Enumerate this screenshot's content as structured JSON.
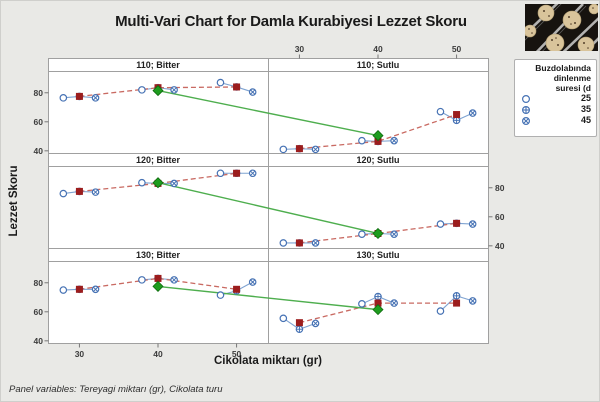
{
  "title": "Multi-Vari Chart for Damla Kurabiyesi Lezzet Skoru",
  "x_axis_label": "Cikolata miktarı (gr)",
  "y_axis_label": "Lezzet Skoru",
  "footnote": "Panel variables: Tereyagi miktarı (gr), Cikolata turu",
  "legend": {
    "title_lines": [
      "Buzdolabında",
      "dinlenme",
      "suresi (d"
    ],
    "items": [
      {
        "label": "25",
        "marker": "open-circle-icon"
      },
      {
        "label": "35",
        "marker": "circle-plus-icon"
      },
      {
        "label": "45",
        "marker": "circle-cross-icon"
      }
    ]
  },
  "colors": {
    "level_marker": "#4672B4",
    "level_line": "#7FA3D1",
    "mean_marker": "#9C1D1D",
    "mean_line": "#C96A62",
    "panel_mean_marker": "#1E9C1E",
    "panel_mean_edge": "#0E6B0E",
    "panel_mean_line": "#4EAE4E",
    "panel_border": "#A0A0A0",
    "background": "#E9E9E6"
  },
  "chart_data": {
    "type": "line",
    "subtype": "multi-vari",
    "x_ticks": [
      30,
      40,
      50
    ],
    "y_ticks": [
      80,
      60,
      40
    ],
    "xlim": [
      26,
      54
    ],
    "ylim": [
      38.5,
      95
    ],
    "jitter_units": 2.05,
    "legend_levels": [
      "25",
      "35",
      "45"
    ],
    "rows": [
      {
        "row_label": "110",
        "panels": [
          {
            "label": "110; Bitter",
            "panel_mean": 81.5,
            "groups": [
              {
                "x": 30,
                "points": [
                  76.5,
                  77.5,
                  76.5
                ],
                "mean": 77.5
              },
              {
                "x": 40,
                "points": [
                  82,
                  83.5,
                  82
                ],
                "mean": 83.5
              },
              {
                "x": 50,
                "points": [
                  87,
                  84,
                  80.5
                ],
                "mean": 84
              }
            ]
          },
          {
            "label": "110; Sutlu",
            "panel_mean": 50.5,
            "groups": [
              {
                "x": 30,
                "points": [
                  41,
                  41.5,
                  41
                ],
                "mean": 41.5
              },
              {
                "x": 40,
                "points": [
                  47,
                  46.5,
                  47
                ],
                "mean": 46.5
              },
              {
                "x": 50,
                "points": [
                  67,
                  61,
                  66
                ],
                "mean": 65
              }
            ]
          }
        ]
      },
      {
        "row_label": "120",
        "panels": [
          {
            "label": "120; Bitter",
            "panel_mean": 83.5,
            "groups": [
              {
                "x": 30,
                "points": [
                  76,
                  77.5,
                  77
                ],
                "mean": 77.5
              },
              {
                "x": 40,
                "points": [
                  83.5,
                  83,
                  83
                ],
                "mean": 83
              },
              {
                "x": 50,
                "points": [
                  90,
                  90,
                  90
                ],
                "mean": 90
              }
            ]
          },
          {
            "label": "120; Sutlu",
            "panel_mean": 48.5,
            "groups": [
              {
                "x": 30,
                "points": [
                  42,
                  42,
                  42
                ],
                "mean": 42
              },
              {
                "x": 40,
                "points": [
                  48,
                  48.5,
                  48
                ],
                "mean": 48.5
              },
              {
                "x": 50,
                "points": [
                  55,
                  55.5,
                  55
                ],
                "mean": 55.5
              }
            ]
          }
        ]
      },
      {
        "row_label": "130",
        "panels": [
          {
            "label": "130; Bitter",
            "panel_mean": 77.5,
            "groups": [
              {
                "x": 30,
                "points": [
                  75,
                  75.5,
                  75.5
                ],
                "mean": 75.5
              },
              {
                "x": 40,
                "points": [
                  82,
                  83,
                  82
                ],
                "mean": 83
              },
              {
                "x": 50,
                "points": [
                  71.5,
                  74.5,
                  80.5
                ],
                "mean": 75.5
              }
            ]
          },
          {
            "label": "130; Sutlu",
            "panel_mean": 61.5,
            "groups": [
              {
                "x": 30,
                "points": [
                  55.5,
                  48,
                  52
                ],
                "mean": 52.5
              },
              {
                "x": 40,
                "points": [
                  65.5,
                  70.5,
                  66
                ],
                "mean": 66
              },
              {
                "x": 50,
                "points": [
                  60.5,
                  71,
                  67.5
                ],
                "mean": 66
              }
            ]
          }
        ]
      }
    ]
  }
}
